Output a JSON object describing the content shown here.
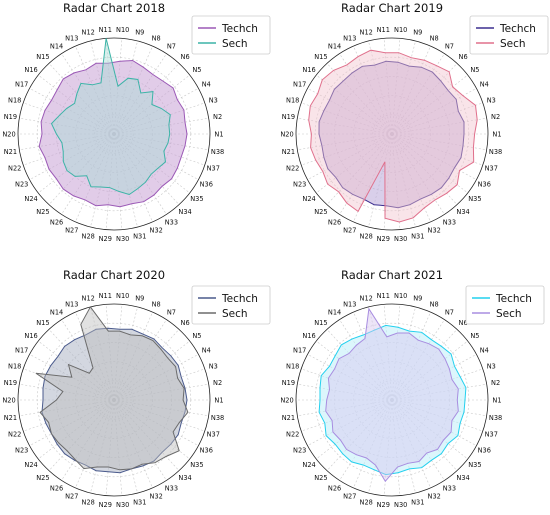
{
  "chart_data": [
    {
      "type": "radar",
      "title": "Radar Chart 2018",
      "categories": [
        "N1",
        "N2",
        "N3",
        "N4",
        "N5",
        "N6",
        "N7",
        "N8",
        "N9",
        "N10",
        "N11",
        "N12",
        "N13",
        "N14",
        "N15",
        "N16",
        "N17",
        "N18",
        "N19",
        "N20",
        "N21",
        "N22",
        "N23",
        "N24",
        "N25",
        "N26",
        "N27",
        "N28",
        "N29",
        "N30",
        "N31",
        "N32",
        "N33",
        "N34",
        "N35",
        "N36",
        "N37",
        "N38"
      ],
      "rlim": [
        0,
        100
      ],
      "grid": true,
      "legend": "top-right",
      "series": [
        {
          "name": "Techch",
          "color": "#9b59b6",
          "fill": "#c8a2d6",
          "values": [
            76,
            75,
            77,
            75,
            78,
            75,
            74,
            76,
            79,
            76,
            74,
            76,
            73,
            76,
            78,
            75,
            74,
            76,
            77,
            75,
            79,
            76,
            77,
            76,
            78,
            77,
            75,
            77,
            74,
            76,
            75,
            77,
            76,
            74,
            76,
            75,
            74,
            75
          ]
        },
        {
          "name": "Sech",
          "color": "#3cb4a7",
          "fill": "#a8dcd4",
          "values": [
            58,
            58,
            62,
            56,
            50,
            60,
            51,
            62,
            60,
            50,
            100,
            55,
            56,
            63,
            57,
            52,
            56,
            60,
            66,
            60,
            55,
            56,
            60,
            62,
            60,
            52,
            60,
            57,
            56,
            60,
            65,
            62,
            60,
            57,
            58,
            61,
            55,
            57
          ]
        }
      ]
    },
    {
      "type": "radar",
      "title": "Radar Chart 2019",
      "categories": [
        "N1",
        "N2",
        "N3",
        "N4",
        "N5",
        "N6",
        "N7",
        "N8",
        "N9",
        "N10",
        "N11",
        "N12",
        "N13",
        "N14",
        "N15",
        "N16",
        "N17",
        "N18",
        "N19",
        "N20",
        "N21",
        "N22",
        "N23",
        "N24",
        "N25",
        "N26",
        "N27",
        "N28",
        "N29",
        "N30",
        "N31",
        "N32",
        "N33",
        "N34",
        "N35",
        "N36",
        "N37",
        "N38"
      ],
      "rlim": [
        0,
        100
      ],
      "grid": true,
      "legend": "top-right",
      "series": [
        {
          "name": "Techch",
          "color": "#3b2f8f",
          "fill": "#b9a8d8",
          "values": [
            75,
            76,
            73,
            76,
            74,
            75,
            77,
            76,
            73,
            75,
            76,
            74,
            77,
            76,
            75,
            76,
            74,
            75,
            77,
            76,
            74,
            75,
            76,
            74,
            76,
            75,
            74,
            76,
            75,
            77,
            76,
            74,
            75,
            76,
            75,
            74,
            76,
            75
          ]
        },
        {
          "name": "Sech",
          "color": "#e0708c",
          "fill": "#f1c3cf",
          "values": [
            86,
            90,
            92,
            84,
            80,
            88,
            85,
            84,
            82,
            85,
            85,
            90,
            88,
            86,
            90,
            92,
            88,
            90,
            88,
            84,
            86,
            84,
            82,
            85,
            82,
            86,
            88,
            30,
            88,
            92,
            90,
            84,
            82,
            84,
            86,
            80,
            90,
            86
          ]
        }
      ]
    },
    {
      "type": "radar",
      "title": "Radar Chart 2020",
      "categories": [
        "N1",
        "N2",
        "N3",
        "N4",
        "N5",
        "N6",
        "N7",
        "N8",
        "N9",
        "N10",
        "N11",
        "N12",
        "N13",
        "N14",
        "N15",
        "N16",
        "N17",
        "N18",
        "N19",
        "N20",
        "N21",
        "N22",
        "N23",
        "N24",
        "N25",
        "N26",
        "N27",
        "N28",
        "N29",
        "N30",
        "N31",
        "N32",
        "N33",
        "N34",
        "N35",
        "N36",
        "N37",
        "N38"
      ],
      "rlim": [
        0,
        100
      ],
      "grid": true,
      "legend": "top-right",
      "series": [
        {
          "name": "Techch",
          "color": "#4a5a8c",
          "fill": "#aeb6c6",
          "values": [
            76,
            75,
            74,
            76,
            75,
            74,
            76,
            75,
            76,
            74,
            75,
            76,
            74,
            75,
            76,
            74,
            75,
            76,
            75,
            74,
            76,
            75,
            74,
            75,
            76,
            75,
            74,
            76,
            75,
            76,
            74,
            75,
            76,
            74,
            75,
            76,
            74,
            75
          ]
        },
        {
          "name": "Sech",
          "color": "#6b6b6b",
          "fill": "#bcbcbc",
          "values": [
            72,
            74,
            70,
            73,
            71,
            72,
            74,
            73,
            70,
            72,
            72,
            100,
            86,
            40,
            38,
            60,
            50,
            86,
            54,
            60,
            78,
            72,
            74,
            73,
            72,
            74,
            78,
            72,
            70,
            73,
            74,
            73,
            78,
            80,
            86,
            70,
            72,
            78
          ]
        }
      ]
    },
    {
      "type": "radar",
      "title": "Radar Chart 2021",
      "categories": [
        "N1",
        "N2",
        "N3",
        "N4",
        "N5",
        "N6",
        "N7",
        "N8",
        "N9",
        "N10",
        "N11",
        "N12",
        "N13",
        "N14",
        "N15",
        "N16",
        "N17",
        "N18",
        "N19",
        "N20",
        "N21",
        "N22",
        "N23",
        "N24",
        "N25",
        "N26",
        "N27",
        "N28",
        "N29",
        "N30",
        "N31",
        "N32",
        "N33",
        "N34",
        "N35",
        "N36",
        "N37",
        "N38"
      ],
      "rlim": [
        0,
        100
      ],
      "grid": true,
      "legend": "top-right",
      "series": [
        {
          "name": "Techch",
          "color": "#22d0ee",
          "fill": "#bfeefa",
          "values": [
            76,
            78,
            75,
            74,
            78,
            76,
            75,
            77,
            74,
            76,
            78,
            75,
            74,
            76,
            78,
            75,
            74,
            78,
            76,
            75,
            77,
            74,
            78,
            75,
            76,
            77,
            74,
            75,
            78,
            76,
            74,
            77,
            75,
            76,
            74,
            78,
            75,
            76
          ]
        },
        {
          "name": "Sech",
          "color": "#a88de0",
          "fill": "#d6c6f0",
          "values": [
            68,
            70,
            66,
            68,
            70,
            72,
            70,
            68,
            72,
            70,
            66,
            98,
            70,
            68,
            66,
            70,
            68,
            70,
            66,
            68,
            70,
            66,
            70,
            68,
            70,
            68,
            66,
            70,
            85,
            70,
            68,
            70,
            66,
            70,
            68,
            70,
            66,
            70
          ]
        }
      ]
    }
  ]
}
